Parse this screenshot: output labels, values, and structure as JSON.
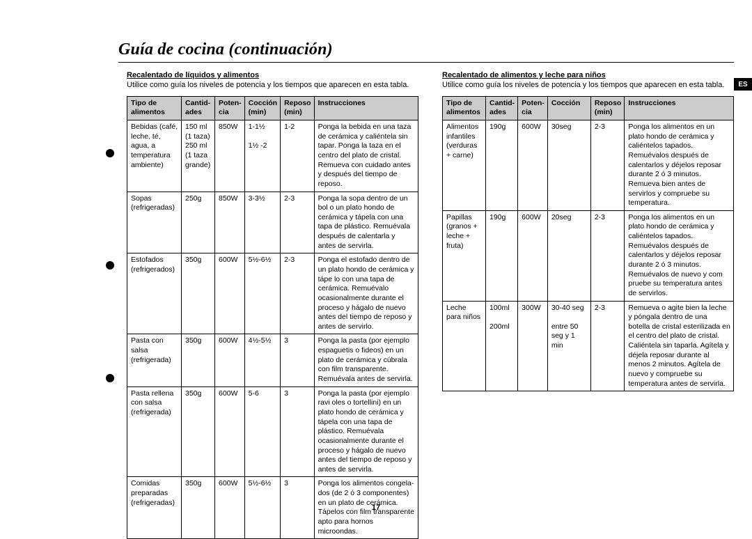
{
  "lang_tag": "ES",
  "page_number": "17",
  "title": "Guía de cocina (continuación)",
  "left": {
    "subheading": "Recalentado de líquidos y alimentos",
    "intro": "Utilice como guía los niveles de potencia y los tiempos que aparecen en esta tabla.",
    "headers": {
      "c1": "Tipo de alimentos",
      "c2": "Cantid-ades",
      "c3": "Poten-cia",
      "c4": "Cocción (min)",
      "c5": "Reposo (min)",
      "c6": "Instrucciones"
    },
    "rows": [
      {
        "c1": "Bebidas (café, leche, té, agua, a temperatura ambiente)",
        "c2": "150 ml (1 taza) 250 ml (1 taza grande)",
        "c3": "850W",
        "c4": "1-1½\n\n1½ -2",
        "c5": "1-2",
        "c6": "Ponga la bebida en una taza de cerámica y caliéntela sin tapar. Ponga la taza en el centro del plato de cristal. Remueva con cuidado antes y después del tiempo de reposo."
      },
      {
        "c1": "Sopas (refrigeradas)",
        "c2": "250g",
        "c3": "850W",
        "c4": "3-3½",
        "c5": "2-3",
        "c6": "Ponga la sopa dentro de un bol o un plato hondo de cerámica y tápela con una tapa de plástico. Remuévala después de calentarla y antes de servirla."
      },
      {
        "c1": "Estofados (refrigerados)",
        "c2": "350g",
        "c3": "600W",
        "c4": "5½-6½",
        "c5": "2-3",
        "c6": "Ponga el estofado dentro de un plato hondo de cerámica y tápe lo con una tapa de cerámica. Remuévalo ocasionalmente durante el proceso y hágalo de nuevo antes del tiempo de reposo y antes de servirlo."
      },
      {
        "c1": "Pasta con salsa (refrigerada)",
        "c2": "350g",
        "c3": "600W",
        "c4": "4½-5½",
        "c5": "3",
        "c6": "Ponga la pasta (por ejemplo espaguetis o fideos) en un plato de cerámica y cúbrala con film transparente. Remuévala antes de servirla."
      },
      {
        "c1": "Pasta rellena con salsa (refrigerada)",
        "c2": "350g",
        "c3": "600W",
        "c4": "5-6",
        "c5": "3",
        "c6": "Ponga la pasta (por ejemplo ravi oles o tortellini) en un plato hondo de cerámica y tápela con una tapa de plástico. Remuévala ocasionalmente durante el proceso y hágalo de nuevo antes del tiempo de reposo y antes de servirla."
      },
      {
        "c1": "Comidas preparadas (refrigeradas)",
        "c2": "350g",
        "c3": "600W",
        "c4": "5½-6½",
        "c5": "3",
        "c6": "Ponga los alimentos congela-dos (de 2 ó 3 componentes) en un plato de cerámica. Tápelos con film transparente apto para hornos microondas."
      }
    ]
  },
  "right": {
    "subheading": "Recalentado de alimentos y leche para niños",
    "intro": "Utilice como guía los niveles de potencia y los tiempos que aparecen en esta tabla.",
    "headers": {
      "c1": "Tipo de alimentos",
      "c2": "Cantid-ades",
      "c3": "Poten-cia",
      "c4": "Cocción",
      "c5": "Reposo (min)",
      "c6": "Instrucciones"
    },
    "rows": [
      {
        "c1": "Alimentos infantiles (verduras + carne)",
        "c2": "190g",
        "c3": "600W",
        "c4": "30seg",
        "c5": "2-3",
        "c6": "Ponga los alimentos en un plato hondo de cerámica y caliéntelos tapados. Remuévalos después de calentarlos y  déjelos reposar durante 2 ó 3 minutos. Remueva bien antes de servirlos y compruebe su temperatura."
      },
      {
        "c1": "Papillas (granos + leche + fruta)",
        "c2": "190g",
        "c3": "600W",
        "c4": "20seg",
        "c5": "2-3",
        "c6": "Ponga los alimentos en un plato hondo de cerámica y caliéntelos tapados. Remuévalos después de calentarlos y déjelos reposar durante 2 ó 3 minutos. Remuévalos de nuevo y com pruebe su temperatura antes de servirlos."
      },
      {
        "c1": "Leche para niños",
        "c2": "100ml\n\n200ml",
        "c3": "300W",
        "c4": "30-40 seg\n\nentre 50 seg y 1 min",
        "c5": "2-3",
        "c6": "Remueva o agite bien la leche y póngala dentro de una botella de cristal esterilizada en el centro del plato de cristal. Caliéntela sin taparla. Agítela y  déjela reposar durante al menos 2 minutos. Agítela de nuevo y compruebe su temperatura antes de servirla."
      }
    ]
  }
}
